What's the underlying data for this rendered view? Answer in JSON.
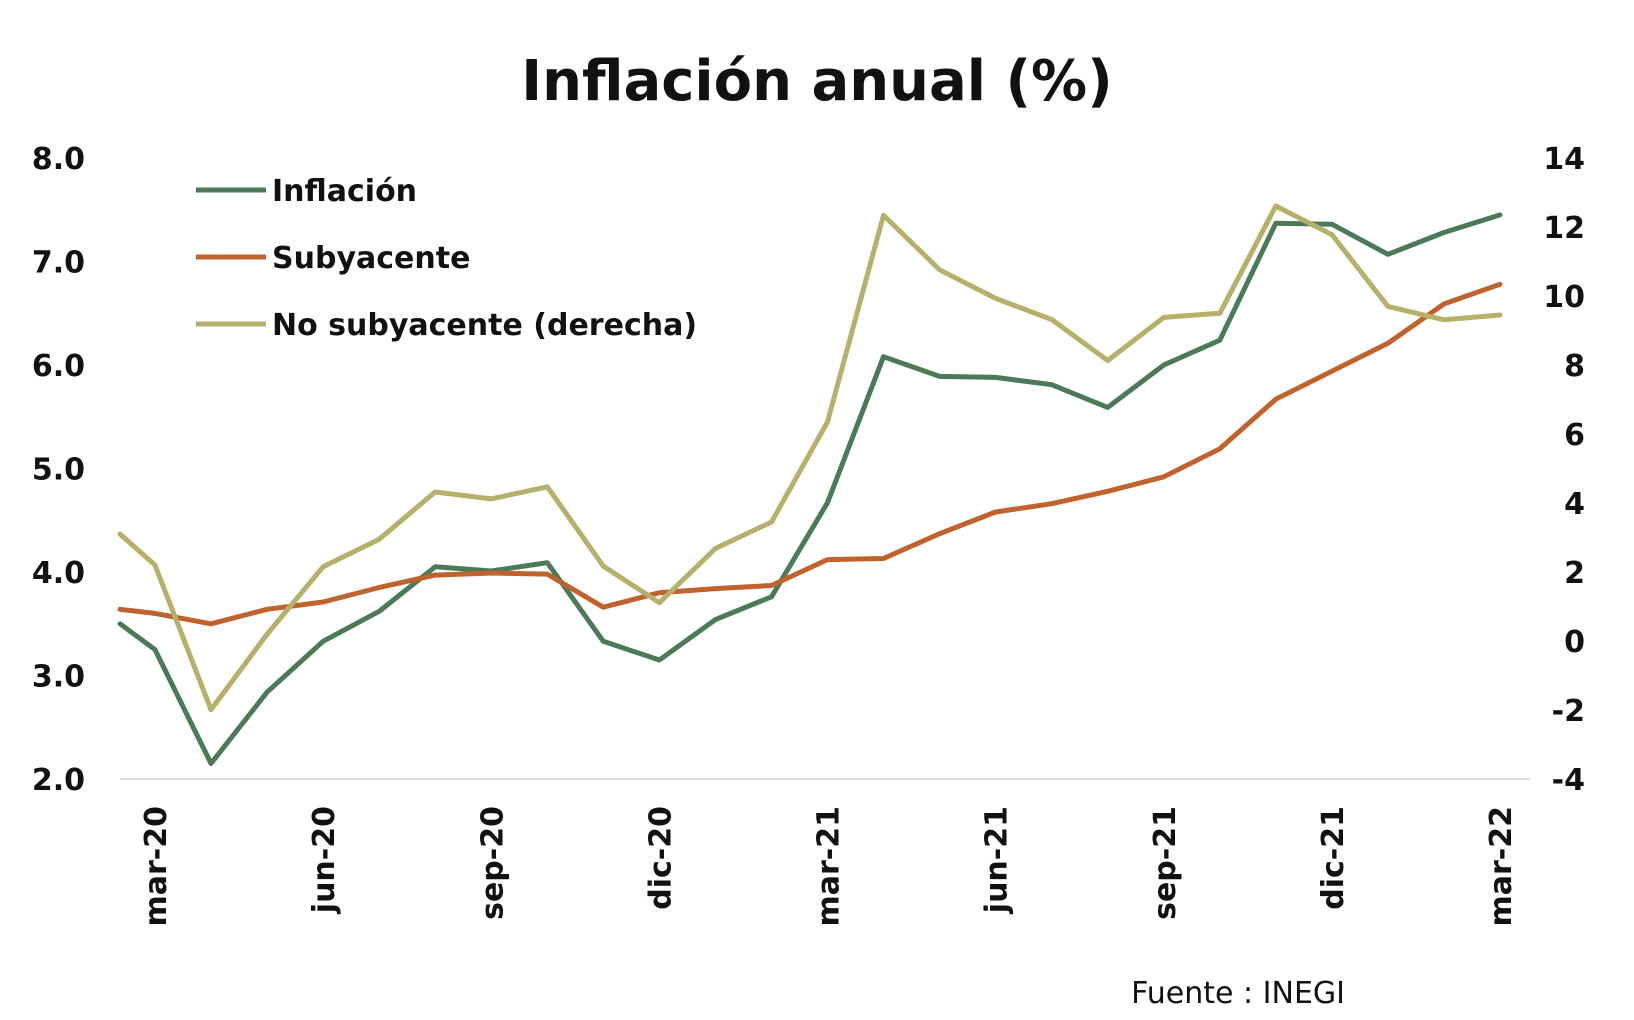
{
  "chart_data": {
    "type": "line",
    "title": "Inflación anual (%)",
    "source": "Fuente : INEGI",
    "x": [
      "mar-20",
      "abr-20",
      "may-20",
      "jun-20",
      "jul-20",
      "ago-20",
      "sep-20",
      "oct-20",
      "nov-20",
      "dic-20",
      "ene-21",
      "feb-21",
      "mar-21",
      "abr-21",
      "may-21",
      "jun-21",
      "jul-21",
      "ago-21",
      "sep-21",
      "oct-21",
      "nov-21",
      "dic-21",
      "ene-22",
      "feb-22",
      "mar-22"
    ],
    "x_tick_labels": [
      "mar-20",
      "jun-20",
      "sep-20",
      "dic-20",
      "mar-21",
      "jun-21",
      "sep-21",
      "dic-21",
      "mar-22"
    ],
    "y_left": {
      "ticks": [
        "2.0",
        "3.0",
        "4.0",
        "5.0",
        "6.0",
        "7.0",
        "8.0"
      ],
      "range": [
        2,
        8
      ]
    },
    "y_right": {
      "ticks": [
        "-4",
        "-2",
        "0",
        "2",
        "4",
        "6",
        "8",
        "10",
        "12",
        "14"
      ],
      "range": [
        -4,
        14
      ]
    },
    "grid": false,
    "legend_position": "top-left",
    "series": [
      {
        "name": "Inflación",
        "axis": "left",
        "color": "#4a7a57",
        "values": [
          3.25,
          2.15,
          2.84,
          3.33,
          3.62,
          4.05,
          4.01,
          4.09,
          3.33,
          3.15,
          3.54,
          3.76,
          4.67,
          6.08,
          5.89,
          5.88,
          5.81,
          5.59,
          6.0,
          6.24,
          7.37,
          7.36,
          7.07,
          7.28,
          7.45
        ]
      },
      {
        "name": "Subyacente",
        "axis": "left",
        "color": "#c0622b",
        "values": [
          3.6,
          3.5,
          3.64,
          3.71,
          3.85,
          3.97,
          3.99,
          3.98,
          3.66,
          3.8,
          3.84,
          3.87,
          4.12,
          4.13,
          4.37,
          4.58,
          4.66,
          4.78,
          4.92,
          5.19,
          5.67,
          5.94,
          6.21,
          6.59,
          6.78
        ]
      },
      {
        "name": "No subyacente (derecha)",
        "axis": "right",
        "color": "#b5b06a",
        "values": [
          2.2,
          -1.99,
          0.2,
          2.15,
          2.95,
          4.32,
          4.12,
          4.47,
          2.17,
          1.11,
          2.68,
          3.45,
          6.35,
          12.34,
          10.76,
          9.93,
          9.32,
          8.13,
          9.38,
          9.5,
          12.61,
          11.78,
          9.7,
          9.31,
          9.45
        ]
      }
    ],
    "series_start_left": [
      3.5,
      4.35
    ],
    "series_start_right": [
      null,
      3.1
    ]
  }
}
